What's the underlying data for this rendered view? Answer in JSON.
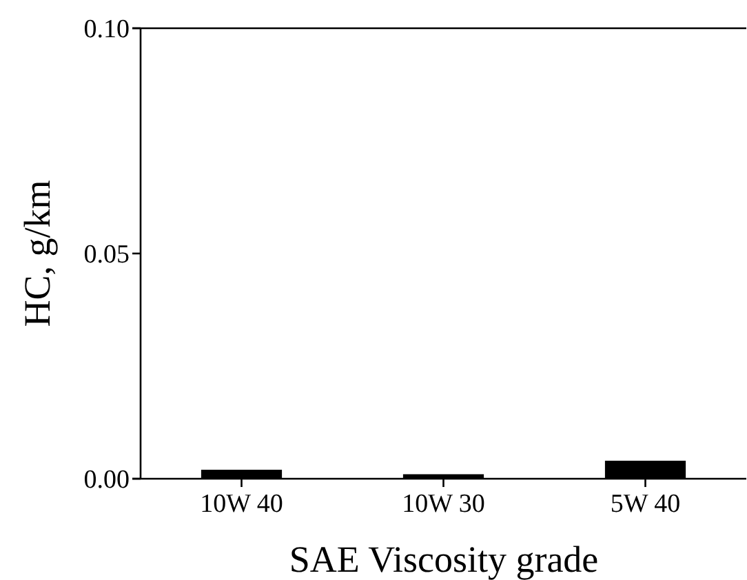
{
  "chart_data": {
    "type": "bar",
    "xlabel": "SAE Viscosity grade",
    "ylabel": "HC, g/km",
    "categories": [
      "10W 40",
      "10W 30",
      "5W 40"
    ],
    "values": [
      0.002,
      0.001,
      0.004
    ],
    "color": "#000000",
    "ylim": [
      0,
      0.1
    ],
    "yticks": [
      {
        "value": 0,
        "label": "0.00"
      },
      {
        "value": 0.05,
        "label": "0.05"
      },
      {
        "value": 0.1,
        "label": "0.10"
      }
    ],
    "grid": false
  }
}
